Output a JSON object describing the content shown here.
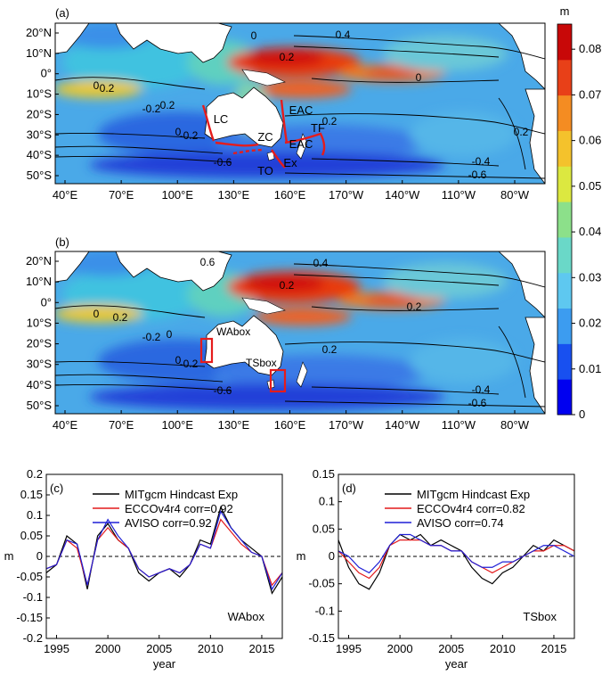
{
  "chart_data": [
    {
      "type": "heatmap",
      "panel_label": "(a)",
      "description_units": "m",
      "lat_ticks": [
        "20°N",
        "10°N",
        "0°",
        "10°S",
        "20°S",
        "30°S",
        "40°S",
        "50°S"
      ],
      "lon_ticks": [
        "40°E",
        "70°E",
        "100°E",
        "130°E",
        "160°E",
        "170°W",
        "140°W",
        "110°W",
        "80°W"
      ],
      "contour_labels": [
        "0",
        "0.4",
        "0.2",
        "0",
        "0.2",
        "0",
        "0.2",
        "-0.2",
        "0",
        "-0.2",
        "0.2",
        "-0.4",
        "-0.6",
        "-0.6",
        "0.2"
      ],
      "annotations": [
        "LC",
        "EAC",
        "ZC",
        "TF",
        "EAC",
        "Ex",
        "TO"
      ]
    },
    {
      "type": "heatmap",
      "panel_label": "(b)",
      "lat_ticks": [
        "20°N",
        "10°N",
        "0°",
        "10°S",
        "20°S",
        "30°S",
        "40°S",
        "50°S"
      ],
      "lon_ticks": [
        "40°E",
        "70°E",
        "100°E",
        "130°E",
        "160°E",
        "170°W",
        "140°W",
        "110°W",
        "80°W"
      ],
      "contour_labels": [
        "0.6",
        "0.4",
        "0.2",
        "0",
        "0.2",
        "0.2",
        "0",
        "-0.2",
        "0",
        "-0.2",
        "0.2",
        "-0.4",
        "-0.6",
        "-0.6"
      ],
      "boxes": [
        "WAbox",
        "TSbox"
      ]
    },
    {
      "type": "colorbar",
      "unit": "m",
      "ticks": [
        0,
        0.01,
        0.02,
        0.03,
        0.04,
        0.05,
        0.06,
        0.07,
        0.08
      ],
      "tick_labels": [
        "0",
        "0.01",
        "0.02",
        "0.03",
        "0.04",
        "0.05",
        "0.06",
        "0.07",
        "0.08"
      ]
    },
    {
      "type": "line",
      "panel_label": "(c)",
      "box_label": "WAbox",
      "xlabel": "year",
      "ylabel": "m",
      "xlim": [
        1994,
        2017
      ],
      "ylim": [
        -0.2,
        0.2
      ],
      "xticks": [
        1995,
        2000,
        2005,
        2010,
        2015
      ],
      "yticks": [
        -0.2,
        -0.15,
        -0.1,
        -0.05,
        0,
        0.05,
        0.1,
        0.15,
        0.2
      ],
      "ytick_labels": [
        "-0.2",
        "-0.15",
        "-0.1",
        "-0.05",
        "0",
        "0.05",
        "0.1",
        "0.15",
        "0.2"
      ],
      "x": [
        1994,
        1995,
        1996,
        1997,
        1998,
        1999,
        2000,
        2001,
        2002,
        2003,
        2004,
        2005,
        2006,
        2007,
        2008,
        2009,
        2010,
        2011,
        2012,
        2013,
        2014,
        2015,
        2016,
        2017
      ],
      "series": [
        {
          "name": "MITgcm Hindcast Exp",
          "legend": "MITgcm Hindcast Exp",
          "color": "#000000",
          "values": [
            -0.04,
            -0.02,
            0.05,
            0.03,
            -0.08,
            0.05,
            0.08,
            0.04,
            0.02,
            -0.04,
            -0.06,
            -0.04,
            -0.03,
            -0.05,
            -0.02,
            0.04,
            0.03,
            0.12,
            0.07,
            0.04,
            0.02,
            0.0,
            -0.09,
            -0.05
          ]
        },
        {
          "name": "ECCOv4r4",
          "legend": "ECCOv4r4  corr=0.92",
          "color": "#e31a1c",
          "values": [
            -0.03,
            -0.02,
            0.04,
            0.02,
            -0.07,
            0.04,
            0.07,
            0.04,
            0.02,
            -0.03,
            -0.05,
            -0.04,
            -0.03,
            -0.04,
            -0.02,
            0.03,
            0.02,
            0.09,
            0.06,
            0.03,
            0.01,
            0.0,
            -0.07,
            -0.04
          ]
        },
        {
          "name": "AVISO",
          "legend": "AVISO  corr=0.92",
          "color": "#1f1fd6",
          "values": [
            -0.03,
            -0.02,
            0.04,
            0.03,
            -0.07,
            0.04,
            0.09,
            0.05,
            0.02,
            -0.03,
            -0.05,
            -0.04,
            -0.03,
            -0.04,
            -0.02,
            0.03,
            0.02,
            0.11,
            0.07,
            0.04,
            0.01,
            0.0,
            -0.08,
            -0.04
          ]
        }
      ]
    },
    {
      "type": "line",
      "panel_label": "(d)",
      "box_label": "TSbox",
      "xlabel": "year",
      "ylabel": "m",
      "xlim": [
        1994,
        2017
      ],
      "ylim": [
        -0.15,
        0.15
      ],
      "xticks": [
        1995,
        2000,
        2005,
        2010,
        2015
      ],
      "yticks": [
        -0.15,
        -0.1,
        -0.05,
        0,
        0.05,
        0.1,
        0.15
      ],
      "ytick_labels": [
        "-0.15",
        "-0.1",
        "-0.05",
        "0",
        "0.05",
        "0.1",
        "0.15"
      ],
      "x": [
        1994,
        1995,
        1996,
        1997,
        1998,
        1999,
        2000,
        2001,
        2002,
        2003,
        2004,
        2005,
        2006,
        2007,
        2008,
        2009,
        2010,
        2011,
        2012,
        2013,
        2014,
        2015,
        2016,
        2017
      ],
      "series": [
        {
          "name": "MITgcm Hindcast Exp",
          "legend": "MITgcm Hindcast Exp",
          "color": "#000000",
          "values": [
            0.03,
            -0.02,
            -0.05,
            -0.06,
            -0.03,
            0.02,
            0.04,
            0.03,
            0.04,
            0.02,
            0.03,
            0.02,
            0.01,
            -0.02,
            -0.04,
            -0.05,
            -0.03,
            -0.02,
            0.0,
            0.02,
            0.01,
            0.03,
            0.02,
            0.01
          ]
        },
        {
          "name": "ECCOv4r4",
          "legend": "ECCOv4r4  corr=0.82",
          "color": "#e31a1c",
          "values": [
            0.01,
            -0.01,
            -0.03,
            -0.04,
            -0.02,
            0.02,
            0.03,
            0.03,
            0.03,
            0.02,
            0.02,
            0.01,
            0.01,
            -0.01,
            -0.02,
            -0.03,
            -0.02,
            -0.01,
            0.0,
            0.01,
            0.01,
            0.02,
            0.02,
            0.01
          ]
        },
        {
          "name": "AVISO",
          "legend": "AVISO  corr=0.74",
          "color": "#1f1fd6",
          "values": [
            0.01,
            0.0,
            -0.02,
            -0.03,
            -0.01,
            0.02,
            0.04,
            0.04,
            0.03,
            0.02,
            0.02,
            0.01,
            0.01,
            -0.01,
            -0.02,
            -0.02,
            -0.01,
            -0.01,
            0.0,
            0.01,
            0.02,
            0.02,
            0.01,
            0.0
          ]
        }
      ]
    }
  ]
}
